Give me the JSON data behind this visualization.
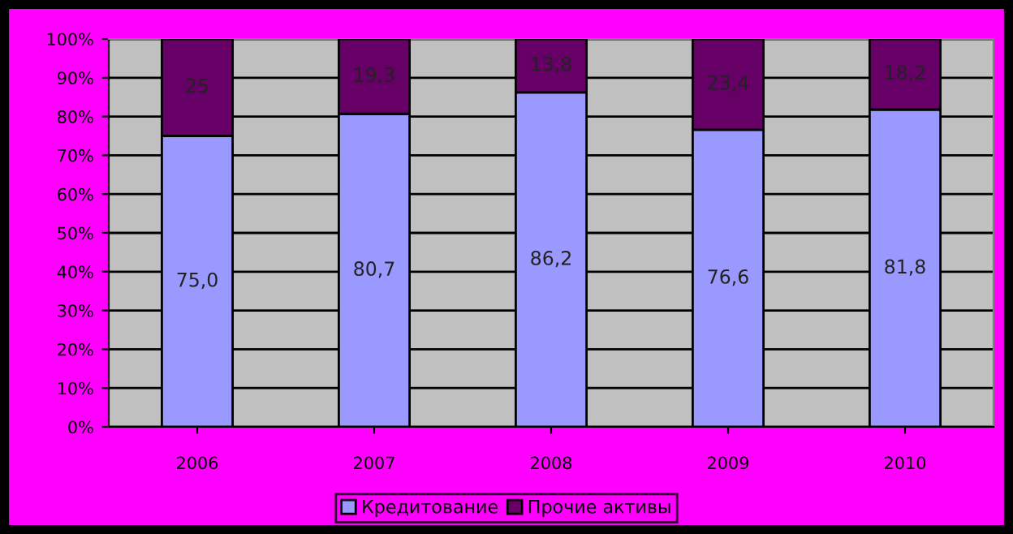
{
  "chart_data": {
    "type": "bar",
    "stacked": true,
    "categories": [
      "2006",
      "2007",
      "2008",
      "2009",
      "2010"
    ],
    "series": [
      {
        "name": "Кредитование",
        "color": "#9999ff",
        "values": [
          75.0,
          80.7,
          86.2,
          76.6,
          81.8
        ],
        "value_labels": [
          "75,0",
          "80,7",
          "86,2",
          "76,6",
          "81,8"
        ]
      },
      {
        "name": "Прочие активы",
        "color": "#660066",
        "values": [
          25,
          19.3,
          13.8,
          23.4,
          18.2
        ],
        "value_labels": [
          "25",
          "19,3",
          "13,8",
          "23,4",
          "18,2"
        ]
      }
    ],
    "ylim": [
      0,
      100
    ],
    "yticks": [
      {
        "value": 0,
        "label": "0%"
      },
      {
        "value": 10,
        "label": "10%"
      },
      {
        "value": 20,
        "label": "20%"
      },
      {
        "value": 30,
        "label": "30%"
      },
      {
        "value": 40,
        "label": "40%"
      },
      {
        "value": 50,
        "label": "50%"
      },
      {
        "value": 60,
        "label": "60%"
      },
      {
        "value": 70,
        "label": "70%"
      },
      {
        "value": 80,
        "label": "80%"
      },
      {
        "value": 90,
        "label": "90%"
      },
      {
        "value": 100,
        "label": "100%"
      }
    ],
    "grid": "y",
    "legend": "bottom"
  }
}
